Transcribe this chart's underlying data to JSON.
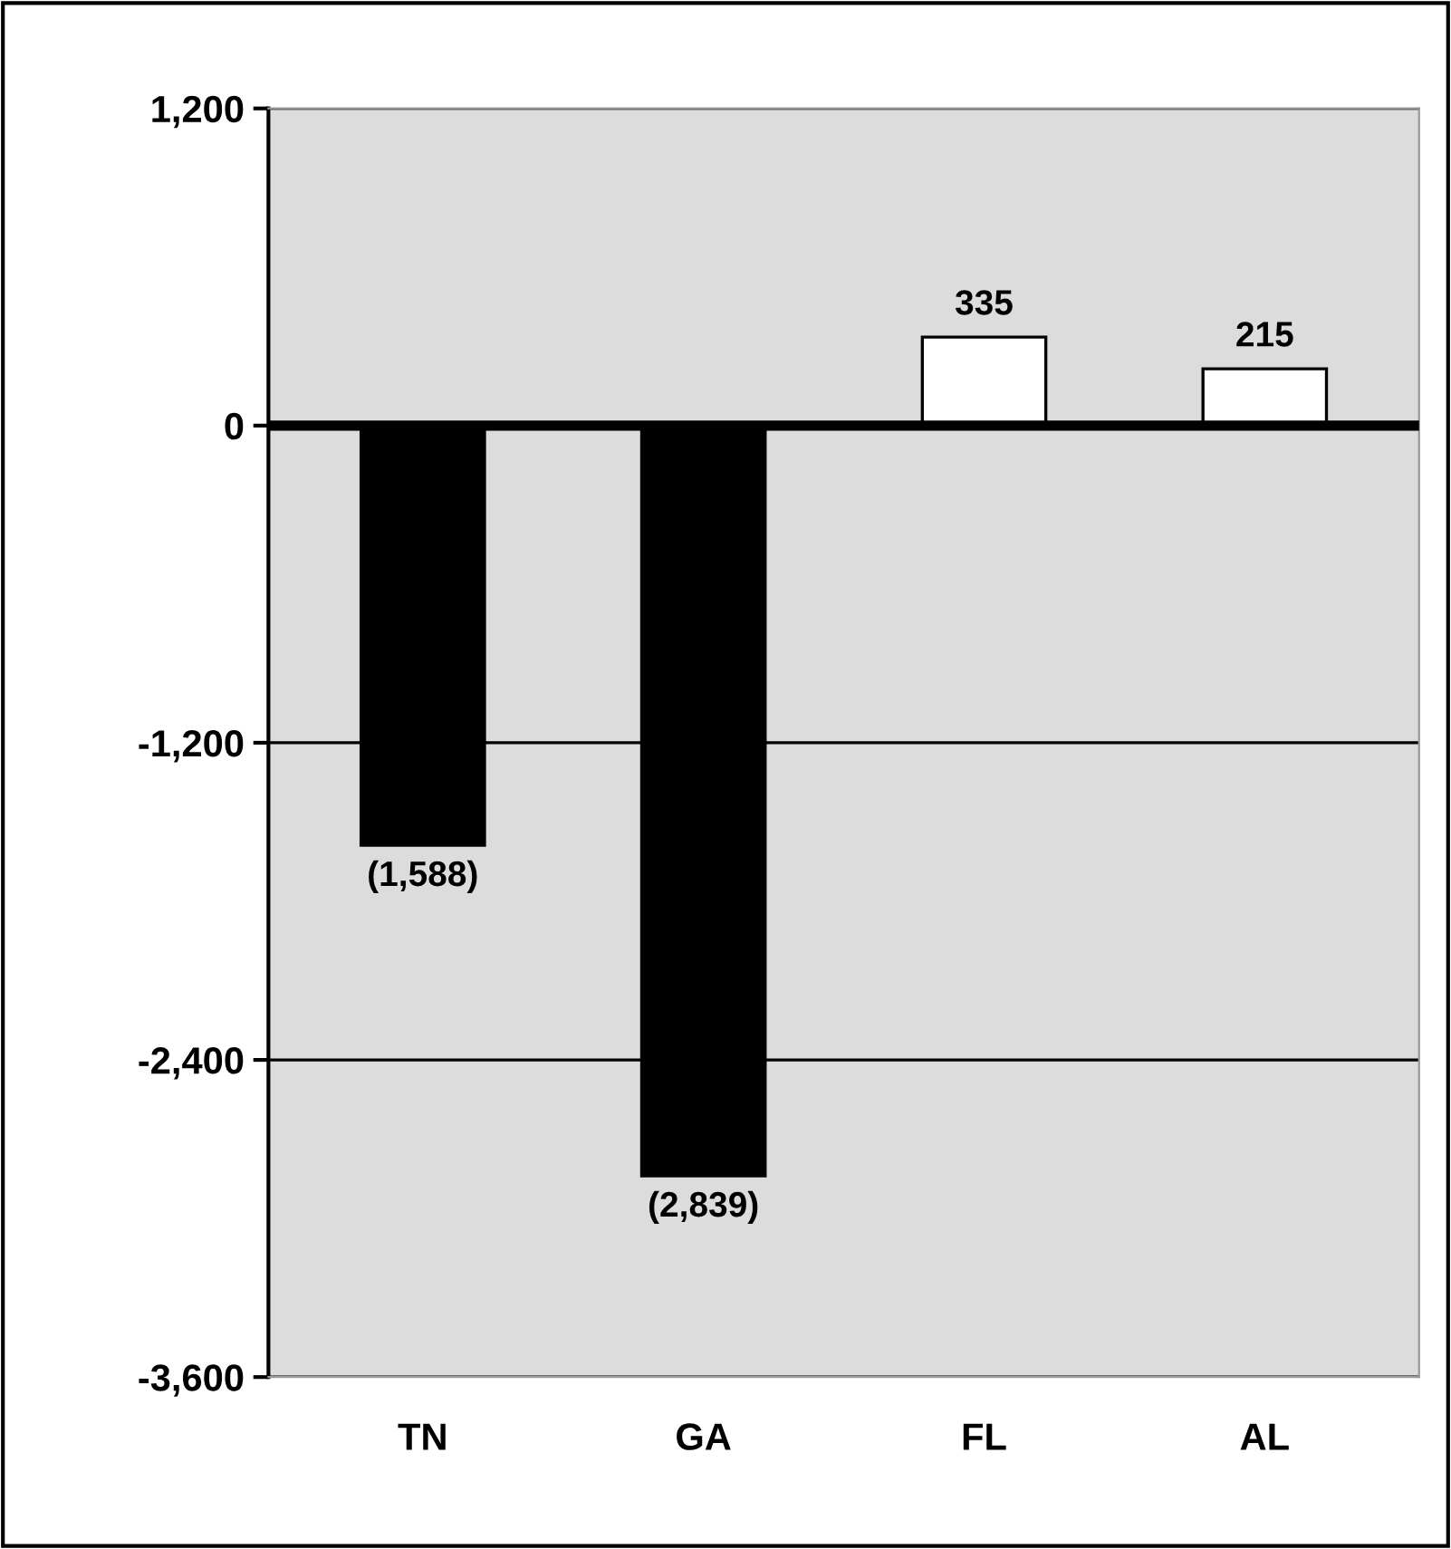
{
  "chart_data": {
    "type": "bar",
    "categories": [
      "TN",
      "GA",
      "FL",
      "AL"
    ],
    "values": [
      -1588,
      -2839,
      335,
      215
    ],
    "colors": [
      "#000000",
      "#000000",
      "#ffffff",
      "#ffffff"
    ],
    "value_labels": [
      "(1,588)",
      "(2,839)",
      "335",
      "215"
    ],
    "ylim": [
      -3600,
      1200
    ],
    "yticks": [
      {
        "value": 1200,
        "label": "1,200"
      },
      0,
      {
        "value": -1200,
        "label": "-1,200"
      },
      {
        "value": -2400,
        "label": "-2,400"
      },
      {
        "value": -3600,
        "label": "-3,600"
      }
    ],
    "grid": "y"
  }
}
